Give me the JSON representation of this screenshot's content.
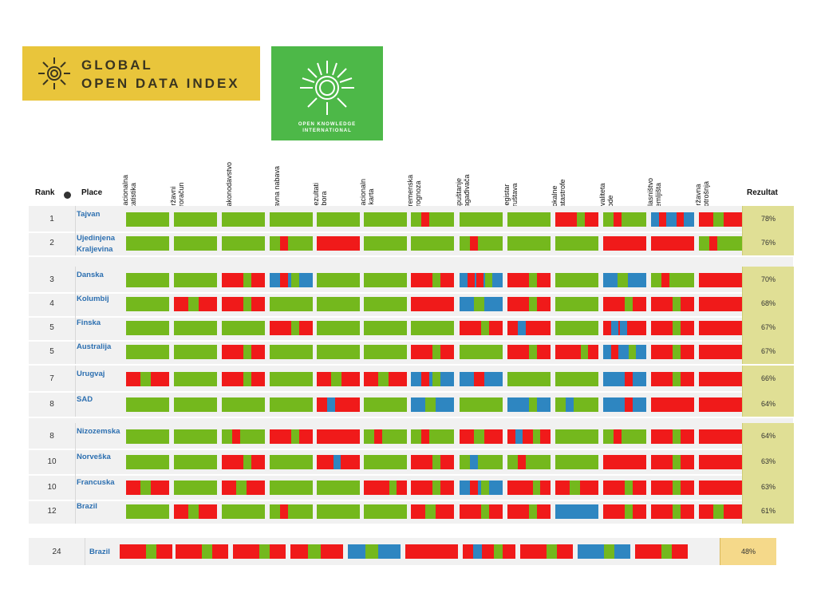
{
  "logos": {
    "godi_line1": "GLOBAL",
    "godi_line2": "OPEN DATA INDEX",
    "oki_line1": "OPEN KNOWLEDGE",
    "oki_line2": "INTERNATIONAL"
  },
  "headers": {
    "rank": "Rank",
    "place": "Place",
    "result": "Rezultat",
    "columns": [
      "Nacionalna\nstatistika",
      "Državni\nproračun",
      "Zakonodavstvo",
      "Javna nabava",
      "Rezultati\nizbora",
      "Nacionaln\na karta",
      "Vremenska\nprognoza",
      "Ispuštanje\nzagađivača",
      "Registar\ndruštava",
      "Lokalne\nkatastrofe",
      "Kvaliteta\nvode",
      "Vlasništvo\nzemljišta",
      "Državna\npotrošnja"
    ]
  },
  "colors": {
    "green": "#74b81d",
    "red": "#f01a1a",
    "blue": "#2e86c1",
    "result_bg": "#e0df95",
    "bottom_result_bg": "#f5d98a"
  },
  "rows": [
    {
      "rank": "1",
      "place": "Tajvan",
      "result": "78%",
      "bars": [
        "g",
        "g",
        "g",
        "g",
        "g",
        "g",
        "gRg",
        "g",
        "g",
        "RRg",
        "gRg",
        "bRbR",
        "Rg"
      ]
    },
    {
      "rank": "2",
      "place": "Ujedinjena Kraljevina",
      "result": "76%",
      "bars": [
        "g",
        "g",
        "g",
        "gRg",
        "R",
        "g",
        "g",
        "gRg",
        "g",
        "g",
        "R",
        "RR",
        "gRg"
      ]
    },
    {
      "rank": "3",
      "place": "Danska",
      "result": "70%",
      "bars": [
        "g",
        "g",
        "RRg",
        "bRg",
        "g",
        "g",
        "RRg",
        "bRRg",
        "RRg",
        "g",
        "bg",
        "gRg",
        "R"
      ]
    },
    {
      "rank": "4",
      "place": "Kolumbij",
      "result": "68%",
      "bars": [
        "g",
        "Rg",
        "RRg",
        "g",
        "g",
        "g",
        "R",
        "bg",
        "RRg",
        "g",
        "RRg",
        "RRg",
        "R"
      ]
    },
    {
      "rank": "5",
      "place": "Finska",
      "result": "67%",
      "bars": [
        "g",
        "g",
        "g",
        "RRg",
        "g",
        "g",
        "g",
        "RRg",
        "RbR",
        "g",
        "RbbR",
        "RRg",
        "R"
      ]
    },
    {
      "rank": "5",
      "place": "Australija",
      "result": "67%",
      "bars": [
        "g",
        "g",
        "RRg",
        "g",
        "g",
        "g",
        "RRg",
        "g",
        "RRg",
        "RRRg",
        "bRbg",
        "RRg",
        "R"
      ]
    },
    {
      "rank": "7",
      "place": "Urugvaj",
      "result": "66%",
      "bars": [
        "Rg",
        "g",
        "RRg",
        "g",
        "Rg",
        "Rg",
        "bRg",
        "bR",
        "g",
        "g",
        "bbR",
        "RRg",
        "R"
      ]
    },
    {
      "rank": "8",
      "place": "SAD",
      "result": "64%",
      "bars": [
        "g",
        "g",
        "g",
        "g",
        "RbR",
        "g",
        "bg",
        "g",
        "bbg",
        "gbg",
        "bbR",
        "R",
        "R"
      ]
    },
    {
      "rank": "8",
      "place": "Nizozemska",
      "result": "64%",
      "bars": [
        "g",
        "g",
        "gRg",
        "RRg",
        "R",
        "gRg",
        "gRg",
        "Rg",
        "RbRg",
        "g",
        "gRg",
        "RRg",
        "R"
      ]
    },
    {
      "rank": "10",
      "place": "Norveška",
      "result": "63%",
      "bars": [
        "g",
        "g",
        "RRg",
        "g",
        "RRbR",
        "g",
        "RRg",
        "gbg",
        "gRg",
        "g",
        "R",
        "RRg",
        "R"
      ]
    },
    {
      "rank": "10",
      "place": "Francuska",
      "result": "63%",
      "bars": [
        "Rg",
        "g",
        "Rg",
        "g",
        "g",
        "RRRg",
        "RRg",
        "bRg",
        "RRRg",
        "Rg",
        "RRg",
        "RRg",
        "R"
      ]
    },
    {
      "rank": "12",
      "place": "Brazil",
      "result": "61%",
      "bars": [
        "g",
        "Rg",
        "g",
        "gRg",
        "g",
        "g",
        "Rg",
        "RRg",
        "RRg",
        "b",
        "RRg",
        "RRg",
        "Rg"
      ]
    }
  ],
  "bottom": {
    "rank": "24",
    "place": "Brazil",
    "result": "48%",
    "bars": [
      "RRg",
      "RRg",
      "RRg",
      "Rg",
      "bg",
      "R",
      "RbRg",
      "RRg",
      "bbg",
      "RRg"
    ]
  }
}
